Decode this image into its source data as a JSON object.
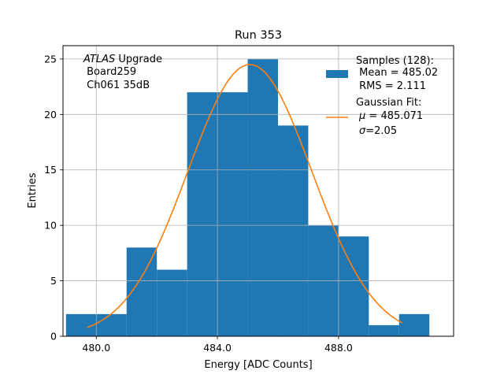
{
  "chart_data": {
    "type": "bar",
    "title": "Run 353",
    "xlabel": "Energy [ADC Counts]",
    "ylabel": "Entries",
    "xlim": [
      478.9,
      491.8
    ],
    "ylim": [
      0,
      26.2
    ],
    "grid": true,
    "bin_edges": [
      479.0,
      480.0,
      481.0,
      482.0,
      483.0,
      484.0,
      485.0,
      486.0,
      487.0,
      488.0,
      489.0,
      490.0,
      491.0
    ],
    "values": [
      2,
      2,
      8,
      6,
      22,
      22,
      25,
      19,
      10,
      9,
      1,
      2
    ],
    "x_ticks": [
      480.0,
      484.0,
      488.0
    ],
    "x_tick_labels": [
      "480.0",
      "484.0",
      "488.0"
    ],
    "y_ticks": [
      0,
      5,
      10,
      15,
      20,
      25
    ],
    "y_tick_labels": [
      "0",
      "5",
      "10",
      "15",
      "20",
      "25"
    ],
    "fit": {
      "type": "gaussian",
      "mu": 485.071,
      "sigma": 2.05,
      "amplitude": 24.5,
      "x_range": [
        479.7,
        490.1
      ]
    },
    "annotation": {
      "italic": "ATLAS",
      "rest": " Upgrade",
      "line2": " Board259",
      "line3": " Ch061 35dB"
    },
    "legend": {
      "position": "top-right",
      "samples": {
        "line1": "Samples (128):",
        "line2": " Mean = 485.02",
        "line3": " RMS = 2.111"
      },
      "fit": {
        "line1": "Gaussian Fit:",
        "mu_prefix": "μ",
        "mu_text": " = 485.071",
        "sigma_prefix": "σ",
        "sigma_text": "=2.05"
      }
    },
    "colors": {
      "bars": "#1f77b4",
      "fit_line": "#ff7f0e",
      "grid": "#b0b0b0"
    }
  }
}
